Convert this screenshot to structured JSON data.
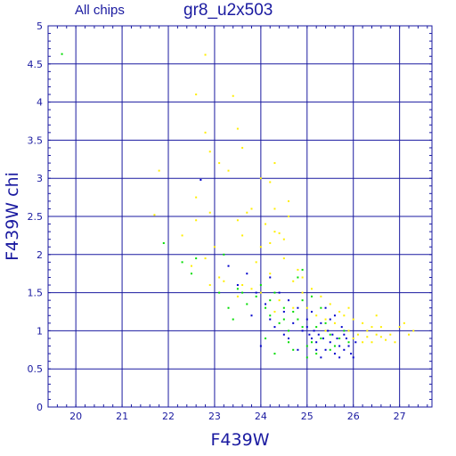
{
  "header": {
    "subtitle": "All chips",
    "title": "gr8_u2x503"
  },
  "chart_data": {
    "type": "scatter",
    "title": "gr8_u2x503",
    "subtitle": "All chips",
    "xlabel": "F439W",
    "ylabel": "F439W chi",
    "xlim": [
      19.4,
      27.7
    ],
    "ylim": [
      0,
      5
    ],
    "x_ticks": [
      20,
      21,
      22,
      23,
      24,
      25,
      26,
      27
    ],
    "y_ticks": [
      0,
      0.5,
      1,
      1.5,
      2,
      2.5,
      3,
      3.5,
      4,
      4.5,
      5
    ],
    "y_tick_labels": [
      "0",
      "0.5",
      "1",
      "1.5",
      "2",
      "2.5",
      "3",
      "3.5",
      "4",
      "4.5",
      "5"
    ],
    "grid": true,
    "colors": {
      "axes": "#1a1aa0",
      "grid": "#1a1aa0",
      "background": "#ffffff"
    },
    "series": [
      {
        "color": "#ffee00",
        "points": [
          [
            22.8,
            4.62
          ],
          [
            22.6,
            4.1
          ],
          [
            23.4,
            4.08
          ],
          [
            23.5,
            3.65
          ],
          [
            22.8,
            3.6
          ],
          [
            23.6,
            3.4
          ],
          [
            22.9,
            3.35
          ],
          [
            21.8,
            3.1
          ],
          [
            23.1,
            3.2
          ],
          [
            23.3,
            3.1
          ],
          [
            24.3,
            3.2
          ],
          [
            24.0,
            3.0
          ],
          [
            24.2,
            2.95
          ],
          [
            22.6,
            2.75
          ],
          [
            24.6,
            2.7
          ],
          [
            24.3,
            2.6
          ],
          [
            21.7,
            2.52
          ],
          [
            22.9,
            2.55
          ],
          [
            23.7,
            2.55
          ],
          [
            23.8,
            2.6
          ],
          [
            23.5,
            2.45
          ],
          [
            24.1,
            2.4
          ],
          [
            24.6,
            2.5
          ],
          [
            22.6,
            2.45
          ],
          [
            24.3,
            2.3
          ],
          [
            24.4,
            2.28
          ],
          [
            24.5,
            2.2
          ],
          [
            24.2,
            2.15
          ],
          [
            23.6,
            2.25
          ],
          [
            22.3,
            2.25
          ],
          [
            24.0,
            2.1
          ],
          [
            23.0,
            2.1
          ],
          [
            22.8,
            1.95
          ],
          [
            23.9,
            1.9
          ],
          [
            24.5,
            1.95
          ],
          [
            24.8,
            1.8
          ],
          [
            22.5,
            1.85
          ],
          [
            23.1,
            1.7
          ],
          [
            24.2,
            1.75
          ],
          [
            23.6,
            1.6
          ],
          [
            24.9,
            1.7
          ],
          [
            25.1,
            1.55
          ],
          [
            24.7,
            1.65
          ],
          [
            25.3,
            1.45
          ],
          [
            24.0,
            1.5
          ],
          [
            23.5,
            1.45
          ],
          [
            24.4,
            1.4
          ],
          [
            25.0,
            1.3
          ],
          [
            25.5,
            1.35
          ],
          [
            25.8,
            1.2
          ],
          [
            26.0,
            1.15
          ],
          [
            26.2,
            1.1
          ],
          [
            26.5,
            1.2
          ],
          [
            26.3,
            1.0
          ],
          [
            26.1,
            0.95
          ],
          [
            26.6,
            0.92
          ],
          [
            26.8,
            0.95
          ],
          [
            26.7,
            0.88
          ],
          [
            27.1,
            1.1
          ],
          [
            27.2,
            0.95
          ],
          [
            27.0,
            1.05
          ],
          [
            26.4,
            1.05
          ],
          [
            25.7,
            1.25
          ],
          [
            25.6,
            1.1
          ],
          [
            25.9,
            1.0
          ],
          [
            26.4,
            0.85
          ],
          [
            26.6,
            1.05
          ],
          [
            26.5,
            0.95
          ],
          [
            26.3,
            0.92
          ],
          [
            25.9,
            1.3
          ],
          [
            26.2,
            0.85
          ],
          [
            25.4,
            1.15
          ],
          [
            25.2,
            1.2
          ],
          [
            24.7,
            1.3
          ],
          [
            24.3,
            1.25
          ],
          [
            24.9,
            1.5
          ],
          [
            25.4,
            1.0
          ],
          [
            26.9,
            0.85
          ],
          [
            27.3,
            1.0
          ],
          [
            26.0,
            0.9
          ],
          [
            23.2,
            1.65
          ],
          [
            23.8,
            1.55
          ],
          [
            22.9,
            1.6
          ]
        ]
      },
      {
        "color": "#00dd00",
        "points": [
          [
            19.7,
            4.63
          ],
          [
            21.9,
            2.15
          ],
          [
            22.3,
            1.9
          ],
          [
            22.6,
            1.95
          ],
          [
            22.5,
            1.75
          ],
          [
            23.2,
            2.0
          ],
          [
            23.3,
            1.3
          ],
          [
            23.6,
            1.5
          ],
          [
            23.7,
            1.35
          ],
          [
            23.9,
            1.45
          ],
          [
            24.0,
            1.6
          ],
          [
            24.1,
            1.3
          ],
          [
            24.2,
            1.2
          ],
          [
            24.3,
            1.5
          ],
          [
            24.4,
            1.1
          ],
          [
            24.5,
            1.3
          ],
          [
            24.6,
            1.0
          ],
          [
            24.7,
            1.25
          ],
          [
            24.8,
            1.15
          ],
          [
            24.9,
            1.4
          ],
          [
            25.0,
            0.8
          ],
          [
            25.1,
            0.85
          ],
          [
            25.2,
            1.05
          ],
          [
            25.3,
            0.9
          ],
          [
            25.4,
            1.1
          ],
          [
            25.5,
            0.95
          ],
          [
            25.6,
            0.8
          ],
          [
            25.7,
            0.9
          ],
          [
            25.8,
            1.0
          ],
          [
            24.1,
            0.9
          ],
          [
            24.3,
            0.7
          ],
          [
            24.6,
            0.85
          ],
          [
            25.0,
            0.65
          ],
          [
            24.8,
            1.7
          ],
          [
            24.9,
            1.8
          ],
          [
            25.1,
            1.45
          ],
          [
            23.1,
            1.5
          ],
          [
            24.7,
            0.75
          ],
          [
            25.5,
            0.75
          ],
          [
            24.2,
            1.4
          ],
          [
            23.5,
            1.55
          ],
          [
            25.3,
            1.3
          ],
          [
            24.5,
            1.15
          ],
          [
            25.2,
            0.7
          ],
          [
            25.9,
            0.85
          ],
          [
            23.4,
            1.15
          ],
          [
            24.9,
            1.05
          ]
        ]
      },
      {
        "color": "#0000cc",
        "points": [
          [
            22.7,
            2.98
          ],
          [
            23.3,
            1.85
          ],
          [
            23.5,
            1.6
          ],
          [
            23.7,
            1.75
          ],
          [
            23.9,
            1.5
          ],
          [
            24.1,
            1.35
          ],
          [
            24.2,
            1.15
          ],
          [
            24.4,
            1.5
          ],
          [
            24.5,
            1.25
          ],
          [
            24.6,
            1.4
          ],
          [
            24.7,
            1.1
          ],
          [
            24.8,
            1.3
          ],
          [
            24.9,
            1.0
          ],
          [
            25.0,
            1.05
          ],
          [
            25.05,
            0.95
          ],
          [
            25.1,
            0.9
          ],
          [
            25.15,
            1.0
          ],
          [
            25.2,
            0.85
          ],
          [
            25.25,
            0.95
          ],
          [
            25.3,
            1.1
          ],
          [
            25.35,
            0.9
          ],
          [
            25.4,
            0.75
          ],
          [
            25.45,
            1.0
          ],
          [
            25.5,
            0.85
          ],
          [
            25.55,
            0.95
          ],
          [
            25.6,
            0.7
          ],
          [
            25.65,
            0.9
          ],
          [
            25.7,
            0.8
          ],
          [
            25.75,
            1.05
          ],
          [
            25.8,
            0.75
          ],
          [
            25.85,
            0.9
          ],
          [
            25.9,
            0.8
          ],
          [
            25.95,
            0.7
          ],
          [
            26.0,
            0.65
          ],
          [
            26.05,
            0.85
          ],
          [
            24.3,
            1.05
          ],
          [
            24.0,
            0.8
          ],
          [
            24.8,
            0.75
          ],
          [
            25.1,
            1.25
          ],
          [
            25.3,
            0.65
          ],
          [
            25.6,
            1.2
          ],
          [
            24.6,
            0.9
          ],
          [
            23.8,
            1.2
          ],
          [
            25.7,
            0.65
          ],
          [
            24.2,
            1.7
          ],
          [
            25.4,
            1.3
          ],
          [
            25.0,
            1.15
          ],
          [
            25.2,
            0.75
          ],
          [
            24.5,
            0.95
          ],
          [
            25.5,
            1.15
          ],
          [
            25.8,
            0.95
          ]
        ]
      }
    ]
  }
}
